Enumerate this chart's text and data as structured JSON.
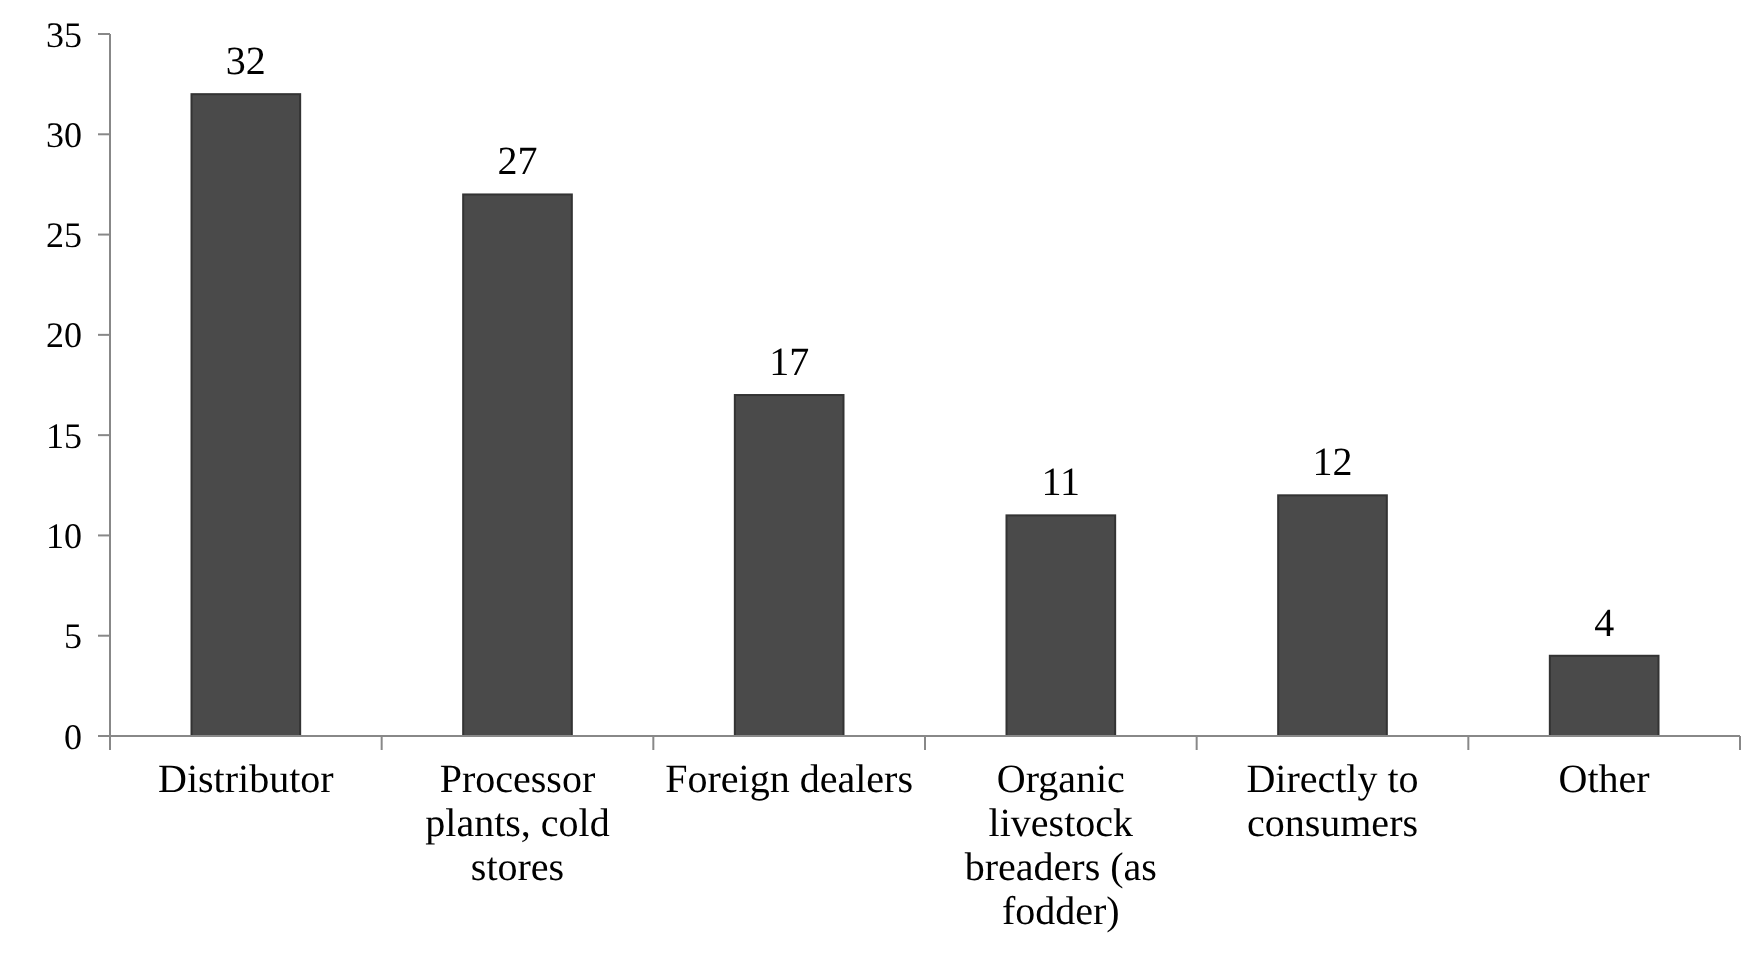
{
  "chart_data": {
    "type": "bar",
    "categories": [
      "Distributor",
      "Processor plants, cold stores",
      "Foreign dealers",
      "Organic livestock breaders (as fodder)",
      "Directly to consumers",
      "Other"
    ],
    "values": [
      32,
      27,
      17,
      11,
      12,
      4
    ],
    "color": "#4a4a4a",
    "ylim": [
      0,
      35
    ],
    "yticks": [
      0,
      5,
      10,
      15,
      20,
      25,
      30,
      35
    ],
    "grid": false,
    "data_labels": true
  }
}
